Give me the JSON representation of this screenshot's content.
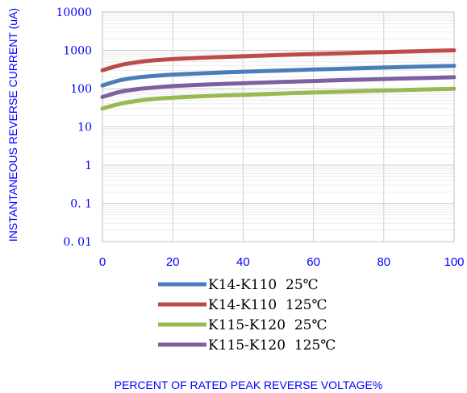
{
  "chart_data": {
    "type": "line",
    "xlabel": "PERCENT OF RATED PEAK REVERSE VOLTAGE%",
    "ylabel": "INSTANTANEOUS REVERSE CURRENT (uA)",
    "xlim": [
      0,
      100
    ],
    "ylim": [
      0.01,
      10000
    ],
    "yscale": "log",
    "x_ticks": [
      0,
      20,
      40,
      60,
      80,
      100
    ],
    "x_tick_labels": [
      "0",
      "20",
      "40",
      "60",
      "80",
      "100"
    ],
    "y_ticks": [
      0.01,
      0.1,
      1,
      10,
      100,
      1000,
      10000
    ],
    "y_tick_labels": [
      "0. 01",
      "0. 1",
      "1",
      "10",
      "100",
      "1000",
      "10000"
    ],
    "grid": true,
    "legend_position": "bottom",
    "series": [
      {
        "name": "K14-K110  25℃",
        "color": "#4a7ebb",
        "x": [
          0,
          5,
          10,
          15,
          20,
          30,
          40,
          50,
          60,
          70,
          80,
          90,
          100
        ],
        "y": [
          120,
          165,
          195,
          215,
          232,
          255,
          275,
          295,
          315,
          335,
          355,
          375,
          395
        ]
      },
      {
        "name": "K14-K110  125℃",
        "color": "#be4b48",
        "x": [
          0,
          5,
          10,
          15,
          20,
          30,
          40,
          50,
          60,
          70,
          80,
          90,
          100
        ],
        "y": [
          300,
          410,
          490,
          550,
          590,
          650,
          700,
          750,
          800,
          850,
          900,
          950,
          1000
        ]
      },
      {
        "name": "K115-K120  25℃",
        "color": "#98b954",
        "x": [
          0,
          5,
          10,
          15,
          20,
          30,
          40,
          50,
          60,
          70,
          80,
          90,
          100
        ],
        "y": [
          30,
          40,
          48,
          54,
          58,
          64,
          69,
          74,
          79,
          84,
          89,
          94,
          99
        ]
      },
      {
        "name": "K115-K120  125℃",
        "color": "#7d60a0",
        "x": [
          0,
          5,
          10,
          15,
          20,
          30,
          40,
          50,
          60,
          70,
          80,
          90,
          100
        ],
        "y": [
          60,
          82,
          97,
          107,
          116,
          128,
          138,
          148,
          158,
          168,
          178,
          188,
          198
        ]
      }
    ]
  }
}
